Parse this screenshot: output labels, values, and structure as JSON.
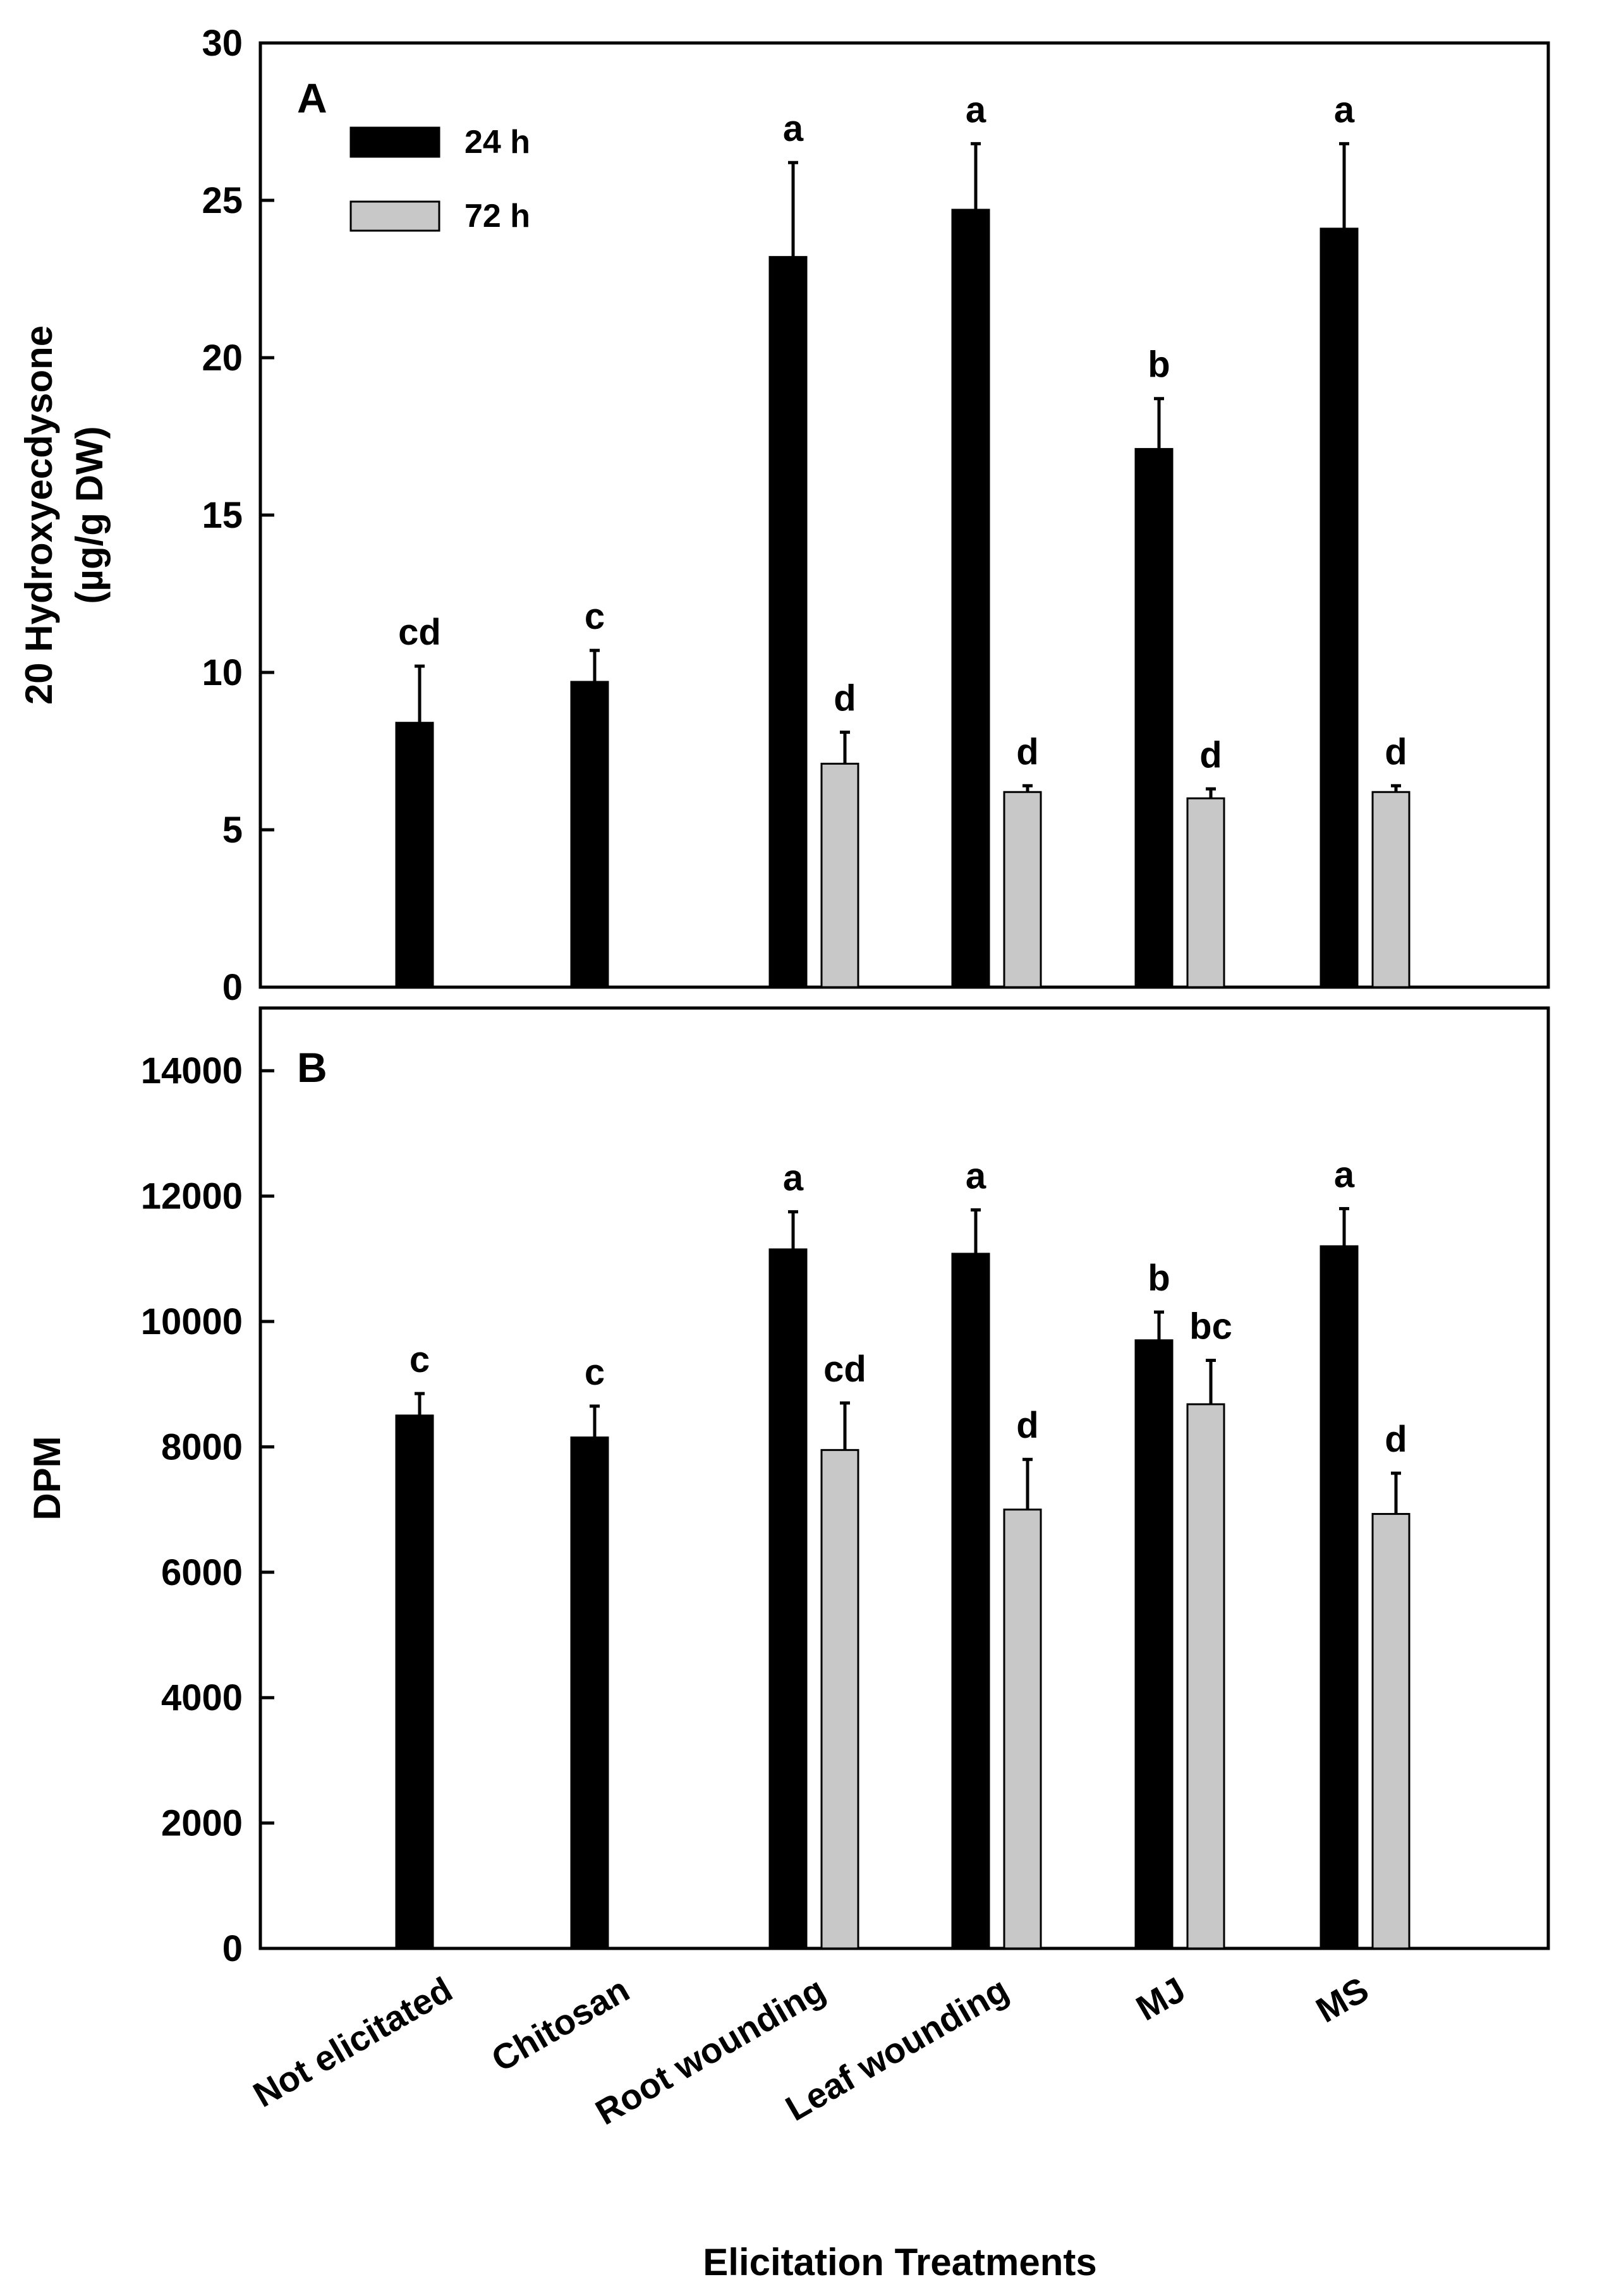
{
  "x_axis_title": "Elicitation Treatments",
  "colors": {
    "series_24h": "#000000",
    "series_72h": "#c8c8c8",
    "axis": "#000000"
  },
  "chart_data": [
    {
      "id": "A",
      "type": "bar",
      "panel_label": "A",
      "ylabel": [
        "20 Hydroxyecdysone",
        "(µg/g DW)"
      ],
      "xlabel": "Elicitation Treatments",
      "categories": [
        "Not elicitated",
        "Chitosan",
        "Root wounding",
        "Leaf wounding",
        "MJ",
        "MS"
      ],
      "ylim": [
        0,
        30
      ],
      "yticks": [
        "0",
        "5",
        "10",
        "15",
        "20",
        "25",
        "30"
      ],
      "legend": {
        "position": "top-left",
        "entries": [
          "24 h",
          "72 h"
        ]
      },
      "series": [
        {
          "name": "24 h",
          "values": [
            8.4,
            9.7,
            23.2,
            24.7,
            17.1,
            24.1
          ],
          "errors": [
            1.8,
            1.0,
            3.0,
            2.1,
            1.6,
            2.7
          ],
          "labels": [
            "cd",
            "c",
            "a",
            "a",
            "b",
            "a"
          ]
        },
        {
          "name": "72 h",
          "values": [
            null,
            null,
            7.1,
            6.2,
            6.0,
            6.2
          ],
          "errors": [
            null,
            null,
            1.0,
            0.2,
            0.3,
            0.2
          ],
          "labels": [
            null,
            null,
            "d",
            "d",
            "d",
            "d"
          ]
        }
      ]
    },
    {
      "id": "B",
      "type": "bar",
      "panel_label": "B",
      "ylabel": [
        "DPM"
      ],
      "xlabel": "Elicitation Treatments",
      "categories": [
        "Not elicitated",
        "Chitosan",
        "Root wounding",
        "Leaf wounding",
        "MJ",
        "MS"
      ],
      "ylim": [
        0,
        15000
      ],
      "yticks": [
        "0",
        "2000",
        "4000",
        "6000",
        "8000",
        "10000",
        "12000",
        "14000"
      ],
      "series": [
        {
          "name": "24 h",
          "values": [
            8500,
            8150,
            11150,
            11080,
            9700,
            11200
          ],
          "errors": [
            350,
            500,
            600,
            700,
            450,
            600
          ],
          "labels": [
            "c",
            "c",
            "a",
            "a",
            "b",
            "a"
          ]
        },
        {
          "name": "72 h",
          "values": [
            null,
            null,
            7950,
            7000,
            8680,
            6930
          ],
          "errors": [
            null,
            null,
            750,
            800,
            700,
            650
          ],
          "labels": [
            null,
            null,
            "cd",
            "d",
            "bc",
            "d"
          ]
        }
      ]
    }
  ]
}
